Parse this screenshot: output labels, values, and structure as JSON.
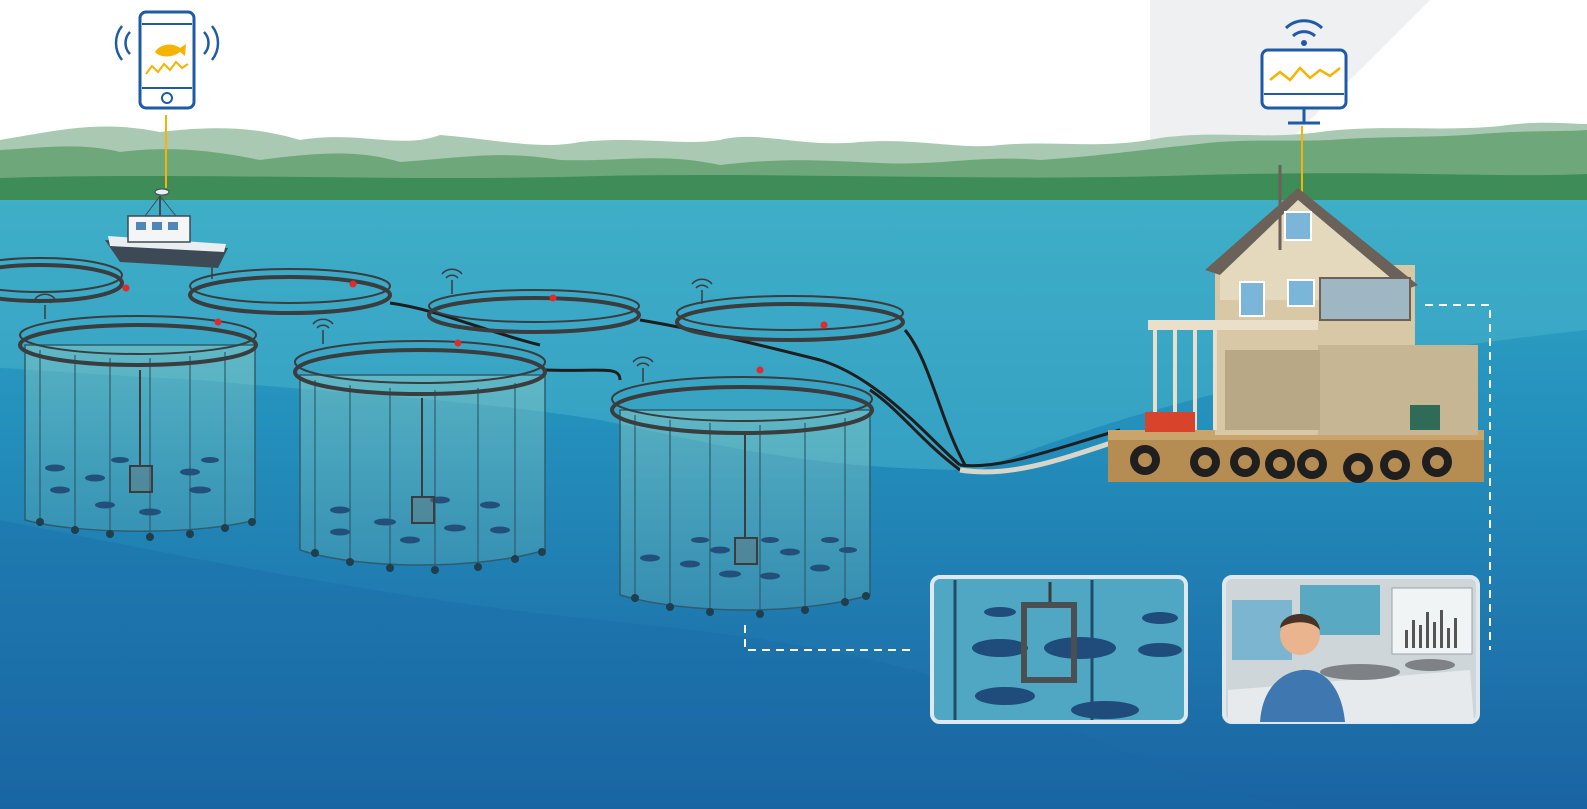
{
  "scene": {
    "title": "",
    "colors": {
      "sky": "#ffffff",
      "mountain_far": "#9cc3a8",
      "mountain_near": "#5d9b6a",
      "shore": "#3c8a55",
      "water_top": "#2a9fbf",
      "water_bottom": "#175f9c",
      "cage_frame": "#3a3c3e",
      "cable": "#1e1e1e",
      "accent_yellow": "#f5b400",
      "device_blue": "#1f5aa6",
      "sensor_dot": "#e22a2a"
    },
    "icons": {
      "phone": "smartphone-fish-icon",
      "monitor": "monitor-wifi-icon",
      "boat": "boat-icon",
      "house": "control-house-icon",
      "camera": "underwater-camera-icon"
    },
    "fish_pens_count": 7,
    "insets": [
      {
        "name": "camera-view-inset",
        "icon": "camera-with-fish-icon"
      },
      {
        "name": "operator-view-inset",
        "icon": "operator-at-desk-icon"
      }
    ]
  }
}
